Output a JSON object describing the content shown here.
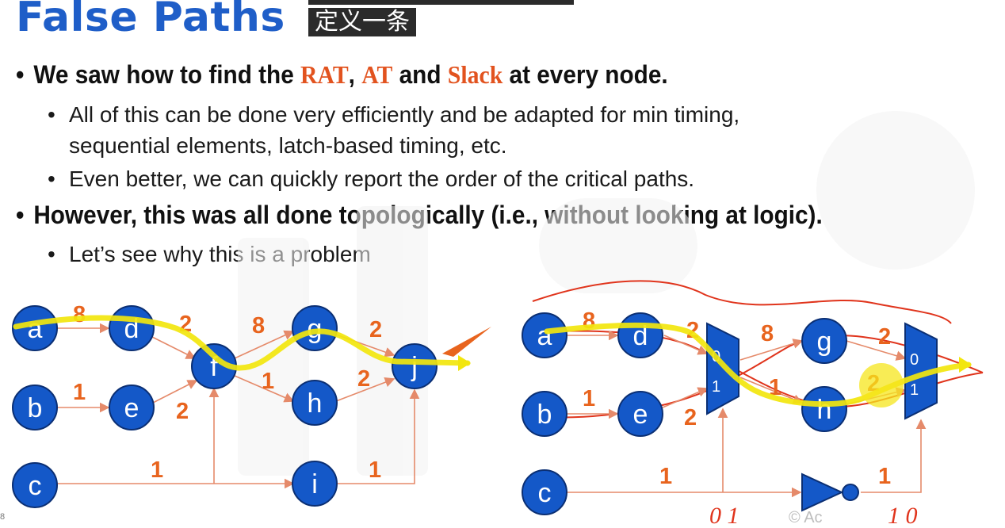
{
  "slide": {
    "title": "False Paths",
    "subtitle": "定义一条",
    "page_number": "8",
    "copyright": "© Ac"
  },
  "bullets": {
    "b1_prefix": "We saw how to find the ",
    "b1_rat": "RAT",
    "b1_comma": ", ",
    "b1_at": "AT",
    "b1_and": " and ",
    "b1_slack": "Slack",
    "b1_suffix": " at every node.",
    "b1_sub1_line1": "All of this can be done very efficiently and be adapted for min timing,",
    "b1_sub1_line2": "sequential elements, latch-based timing, etc.",
    "b1_sub2": "Even better, we can quickly report the order of the critical paths.",
    "b2": "However, this was all done topologically (i.e., without looking at logic).",
    "b2_sub1": "Let’s see why this is a problem"
  },
  "left_graph": {
    "nodes": {
      "a": "a",
      "b": "b",
      "c": "c",
      "d": "d",
      "e": "e",
      "f": "f",
      "g": "g",
      "h": "h",
      "i": "i",
      "j": "j"
    },
    "weights": {
      "ad": "8",
      "df": "2",
      "fg": "8",
      "gj": "2",
      "be": "1",
      "ef": "2",
      "fh": "1",
      "hj": "2",
      "ci": "1",
      "ij": "1"
    }
  },
  "right_graph": {
    "nodes": {
      "a": "a",
      "b": "b",
      "c": "c",
      "d": "d",
      "e": "e",
      "g": "g",
      "h": "h"
    },
    "weights": {
      "ad": "8",
      "dmux": "2",
      "mux_g": "8",
      "g_mux": "2",
      "be": "1",
      "e_mux": "2",
      "mux_h": "1",
      "h_mux": "2",
      "c_inv": "1",
      "inv_mux": "1"
    },
    "mux1_inputs": [
      "0",
      "1"
    ],
    "mux2_inputs": [
      "0",
      "1"
    ],
    "annotations": {
      "left_bits": "0  1",
      "right_bits": "1  0"
    }
  },
  "colors": {
    "title": "#1f5ec8",
    "highlight": "#e2531f",
    "node": "#1458c8",
    "weight": "#e8641e",
    "critical_path": "#f2e60d",
    "handwriting": "#e0341c"
  }
}
